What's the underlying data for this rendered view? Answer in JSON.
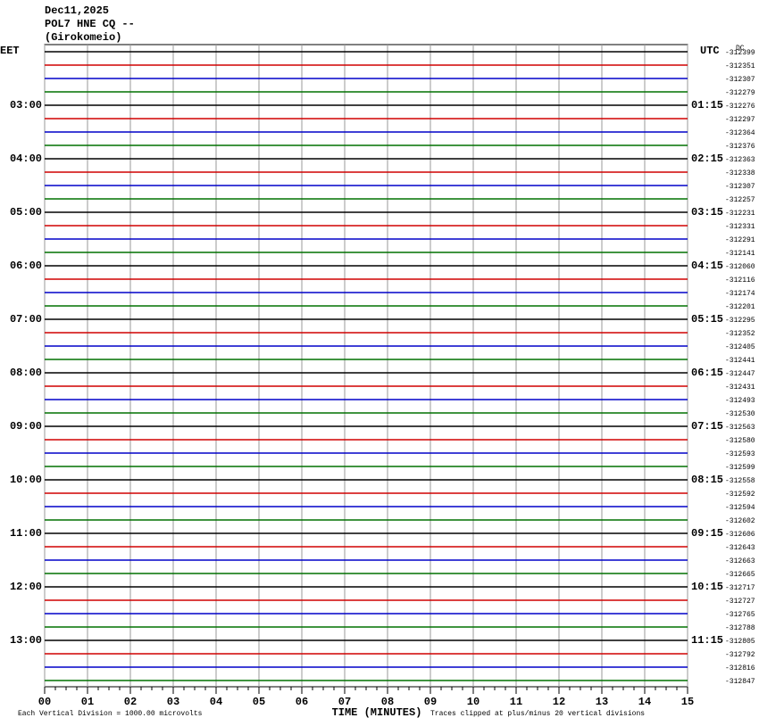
{
  "chart_data": {
    "type": "helicorder",
    "title_lines": [
      "Dec11,2025",
      "POL7 HNE CQ --",
      "(Girokomeio)"
    ],
    "left_axis_label": "EET",
    "right_axis_label": "UTC",
    "corner_label": "DC",
    "left_times": [
      "03:00",
      "04:00",
      "05:00",
      "06:00",
      "07:00",
      "08:00",
      "09:00",
      "10:00",
      "11:00",
      "12:00",
      "13:00"
    ],
    "right_times": [
      "01:15",
      "02:15",
      "03:15",
      "04:15",
      "05:15",
      "06:15",
      "07:15",
      "08:15",
      "09:15",
      "10:15",
      "11:15"
    ],
    "trace_offsets": [
      -312399,
      -312351,
      -312307,
      -312279,
      -312276,
      -312297,
      -312364,
      -312376,
      -312363,
      -312338,
      -312307,
      -312257,
      -312231,
      -312331,
      -312291,
      -312141,
      -312060,
      -312116,
      -312174,
      -312201,
      -312295,
      -312352,
      -312405,
      -312441,
      -312447,
      -312431,
      -312493,
      -312530,
      -312563,
      -312580,
      -312593,
      -312599,
      -312558,
      -312592,
      -312594,
      -312602,
      -312606,
      -312643,
      -312663,
      -312665,
      -312717,
      -312727,
      -312765,
      -312788,
      -312805,
      -312792,
      -312816,
      -312847
    ],
    "trace_colors": [
      "#000000",
      "#d00000",
      "#0000c8",
      "#007000"
    ],
    "xlabel": "TIME (MINUTES)",
    "xlim": [
      0,
      15
    ],
    "xticks": [
      {
        "value": 0,
        "label": "00"
      },
      {
        "value": 1,
        "label": "01"
      },
      {
        "value": 2,
        "label": "02"
      },
      {
        "value": 3,
        "label": "03"
      },
      {
        "value": 4,
        "label": "04"
      },
      {
        "value": 5,
        "label": "05"
      },
      {
        "value": 6,
        "label": "06"
      },
      {
        "value": 7,
        "label": "07"
      },
      {
        "value": 8,
        "label": "08"
      },
      {
        "value": 9,
        "label": "09"
      },
      {
        "value": 10,
        "label": "10"
      },
      {
        "value": 11,
        "label": "11"
      },
      {
        "value": 12,
        "label": "12"
      },
      {
        "value": 13,
        "label": "13"
      },
      {
        "value": 14,
        "label": "14"
      },
      15
    ],
    "footer_left": "Each Vertical Division = 1000.00 microvolts",
    "footer_right": "Traces clipped at plus/minus 20 vertical divisions",
    "grid": true
  }
}
